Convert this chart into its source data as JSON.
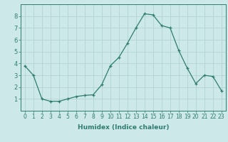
{
  "x": [
    0,
    1,
    2,
    3,
    4,
    5,
    6,
    7,
    8,
    9,
    10,
    11,
    12,
    13,
    14,
    15,
    16,
    17,
    18,
    19,
    20,
    21,
    22,
    23
  ],
  "y": [
    3.8,
    3.0,
    1.0,
    0.8,
    0.8,
    1.0,
    1.2,
    1.3,
    1.35,
    2.2,
    3.8,
    4.5,
    5.7,
    7.0,
    8.2,
    8.1,
    7.2,
    7.0,
    5.1,
    3.6,
    2.3,
    3.0,
    2.9,
    1.7
  ],
  "xlabel": "Humidex (Indice chaleur)",
  "xlim": [
    -0.5,
    23.5
  ],
  "ylim": [
    0,
    9
  ],
  "yticks": [
    1,
    2,
    3,
    4,
    5,
    6,
    7,
    8
  ],
  "xticks": [
    0,
    1,
    2,
    3,
    4,
    5,
    6,
    7,
    8,
    9,
    10,
    11,
    12,
    13,
    14,
    15,
    16,
    17,
    18,
    19,
    20,
    21,
    22,
    23
  ],
  "line_color": "#2e7d6e",
  "marker": "+",
  "bg_color": "#cce8e8",
  "grid_color": "#aed0d0",
  "tick_fontsize": 5.5,
  "xlabel_fontsize": 6.5
}
